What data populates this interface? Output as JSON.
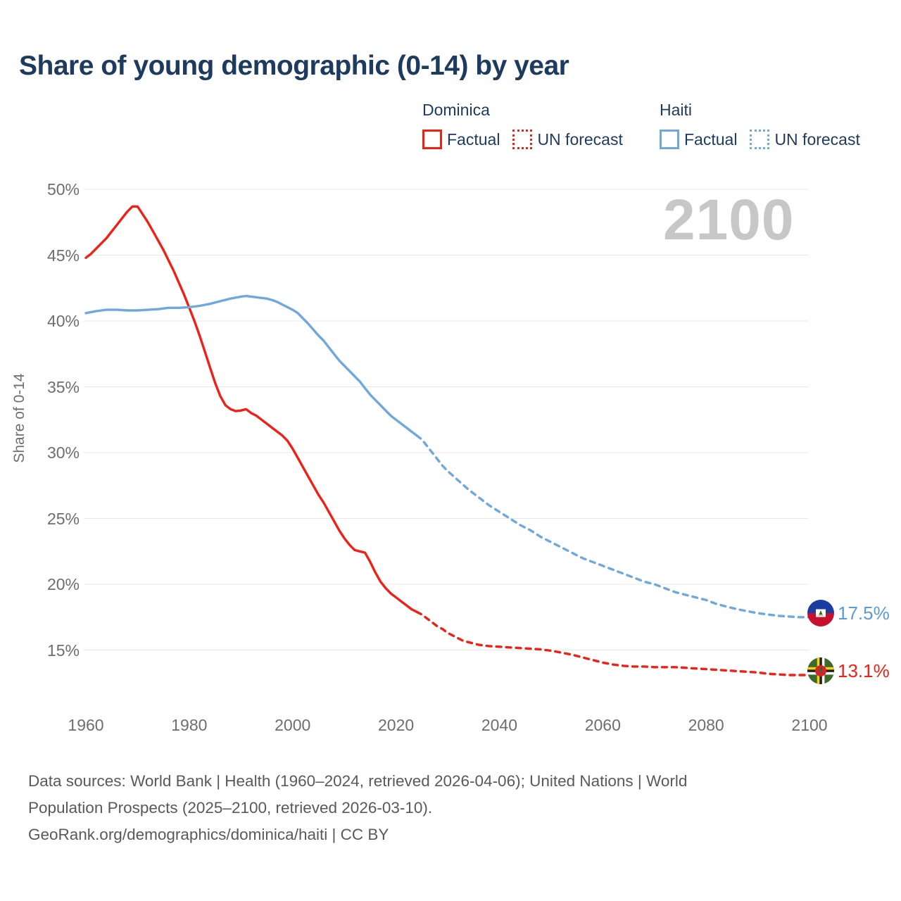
{
  "title": "Share of young demographic (0-14) by year",
  "watermark": "2100",
  "legend": {
    "dominica_label": "Dominica",
    "haiti_label": "Haiti",
    "factual_label": "Factual",
    "forecast_label": "UN forecast"
  },
  "end_labels": {
    "haiti_value": "17.5%",
    "dominica_value": "13.1%"
  },
  "footer": {
    "line1": "Data sources: World Bank | Health (1960–2024, retrieved 2026-04-06); United Nations | World",
    "line2": "Population Prospects (2025–2100, retrieved 2026-03-10).",
    "line3": "GeoRank.org/demographics/dominica/haiti | CC BY"
  },
  "colors": {
    "dominica": "#f02015",
    "haiti": "#6fa8dc",
    "haiti_label_text": "#5b9bd8",
    "title_text": "#1d3a5f",
    "axis_text": "#6e6e6e",
    "gridline": "#e8e8e8",
    "watermark": "#c7c7c7",
    "footer_text": "#595959"
  },
  "chart_data": {
    "type": "line",
    "title": "Share of young demographic (0-14) by year",
    "xlabel": "",
    "ylabel": "Share of 0-14",
    "x_axis": {
      "ticks": [
        1960,
        1980,
        2000,
        2020,
        2040,
        2060,
        2080,
        2100
      ],
      "range": [
        1960,
        2100
      ]
    },
    "y_axis": {
      "ticks_pct": [
        15,
        20,
        25,
        30,
        35,
        40,
        45,
        50
      ],
      "unit": "%",
      "grid": true
    },
    "legend_position": "top-right",
    "series": [
      {
        "name": "Dominica Factual",
        "style": "solid",
        "color": "#f02015",
        "points": [
          [
            1960,
            44.8
          ],
          [
            1961,
            45.1
          ],
          [
            1962,
            45.5
          ],
          [
            1963,
            45.9
          ],
          [
            1964,
            46.3
          ],
          [
            1965,
            46.8
          ],
          [
            1966,
            47.3
          ],
          [
            1967,
            47.8
          ],
          [
            1968,
            48.3
          ],
          [
            1969,
            48.7
          ],
          [
            1970,
            48.7
          ],
          [
            1971,
            48.1
          ],
          [
            1972,
            47.5
          ],
          [
            1973,
            46.8
          ],
          [
            1974,
            46.1
          ],
          [
            1975,
            45.4
          ],
          [
            1976,
            44.6
          ],
          [
            1977,
            43.8
          ],
          [
            1978,
            42.9
          ],
          [
            1979,
            42.0
          ],
          [
            1980,
            41.0
          ],
          [
            1981,
            40.0
          ],
          [
            1982,
            38.9
          ],
          [
            1983,
            37.7
          ],
          [
            1984,
            36.5
          ],
          [
            1985,
            35.3
          ],
          [
            1986,
            34.3
          ],
          [
            1987,
            33.6
          ],
          [
            1988,
            33.3
          ],
          [
            1989,
            33.15
          ],
          [
            1990,
            33.2
          ],
          [
            1991,
            33.3
          ],
          [
            1992,
            33.0
          ],
          [
            1993,
            32.8
          ],
          [
            1994,
            32.5
          ],
          [
            1995,
            32.2
          ],
          [
            1996,
            31.9
          ],
          [
            1997,
            31.6
          ],
          [
            1998,
            31.3
          ],
          [
            1999,
            30.9
          ],
          [
            2000,
            30.3
          ],
          [
            2001,
            29.6
          ],
          [
            2002,
            28.9
          ],
          [
            2003,
            28.2
          ],
          [
            2004,
            27.5
          ],
          [
            2005,
            26.8
          ],
          [
            2006,
            26.2
          ],
          [
            2007,
            25.5
          ],
          [
            2008,
            24.8
          ],
          [
            2009,
            24.1
          ],
          [
            2010,
            23.5
          ],
          [
            2011,
            23.0
          ],
          [
            2012,
            22.6
          ],
          [
            2013,
            22.5
          ],
          [
            2014,
            22.4
          ],
          [
            2015,
            21.7
          ],
          [
            2016,
            20.9
          ],
          [
            2017,
            20.2
          ],
          [
            2018,
            19.7
          ],
          [
            2019,
            19.3
          ],
          [
            2020,
            19.0
          ],
          [
            2021,
            18.7
          ],
          [
            2022,
            18.4
          ],
          [
            2023,
            18.1
          ],
          [
            2024,
            17.9
          ]
        ]
      },
      {
        "name": "Dominica UN forecast",
        "style": "dashed",
        "color": "#f02015",
        "points": [
          [
            2024,
            17.9
          ],
          [
            2025,
            17.7
          ],
          [
            2026,
            17.4
          ],
          [
            2027,
            17.1
          ],
          [
            2028,
            16.8
          ],
          [
            2029,
            16.6
          ],
          [
            2030,
            16.3
          ],
          [
            2031,
            16.1
          ],
          [
            2032,
            15.9
          ],
          [
            2033,
            15.7
          ],
          [
            2034,
            15.6
          ],
          [
            2035,
            15.5
          ],
          [
            2036,
            15.4
          ],
          [
            2038,
            15.3
          ],
          [
            2040,
            15.25
          ],
          [
            2042,
            15.2
          ],
          [
            2044,
            15.15
          ],
          [
            2046,
            15.1
          ],
          [
            2048,
            15.05
          ],
          [
            2050,
            14.95
          ],
          [
            2052,
            14.8
          ],
          [
            2054,
            14.65
          ],
          [
            2056,
            14.45
          ],
          [
            2058,
            14.25
          ],
          [
            2060,
            14.05
          ],
          [
            2062,
            13.9
          ],
          [
            2064,
            13.8
          ],
          [
            2066,
            13.75
          ],
          [
            2068,
            13.75
          ],
          [
            2070,
            13.7
          ],
          [
            2072,
            13.7
          ],
          [
            2074,
            13.7
          ],
          [
            2076,
            13.65
          ],
          [
            2078,
            13.6
          ],
          [
            2080,
            13.55
          ],
          [
            2082,
            13.5
          ],
          [
            2084,
            13.45
          ],
          [
            2086,
            13.4
          ],
          [
            2088,
            13.35
          ],
          [
            2090,
            13.3
          ],
          [
            2092,
            13.2
          ],
          [
            2094,
            13.15
          ],
          [
            2096,
            13.1
          ],
          [
            2098,
            13.1
          ],
          [
            2100,
            13.1
          ]
        ]
      },
      {
        "name": "Haiti Factual",
        "style": "solid",
        "color": "#6fa8dc",
        "points": [
          [
            1960,
            40.6
          ],
          [
            1962,
            40.75
          ],
          [
            1964,
            40.85
          ],
          [
            1966,
            40.85
          ],
          [
            1968,
            40.8
          ],
          [
            1970,
            40.8
          ],
          [
            1972,
            40.85
          ],
          [
            1974,
            40.9
          ],
          [
            1976,
            41.0
          ],
          [
            1978,
            41.0
          ],
          [
            1980,
            41.05
          ],
          [
            1982,
            41.15
          ],
          [
            1984,
            41.3
          ],
          [
            1986,
            41.5
          ],
          [
            1988,
            41.7
          ],
          [
            1990,
            41.85
          ],
          [
            1991,
            41.9
          ],
          [
            1992,
            41.85
          ],
          [
            1994,
            41.75
          ],
          [
            1995,
            41.7
          ],
          [
            1996,
            41.6
          ],
          [
            1997,
            41.45
          ],
          [
            1998,
            41.25
          ],
          [
            1999,
            41.05
          ],
          [
            2000,
            40.85
          ],
          [
            2001,
            40.6
          ],
          [
            2002,
            40.2
          ],
          [
            2003,
            39.8
          ],
          [
            2004,
            39.35
          ],
          [
            2005,
            38.9
          ],
          [
            2006,
            38.5
          ],
          [
            2007,
            38.0
          ],
          [
            2008,
            37.5
          ],
          [
            2009,
            37.0
          ],
          [
            2010,
            36.6
          ],
          [
            2011,
            36.2
          ],
          [
            2012,
            35.8
          ],
          [
            2013,
            35.4
          ],
          [
            2014,
            34.9
          ],
          [
            2015,
            34.4
          ],
          [
            2016,
            34.0
          ],
          [
            2017,
            33.6
          ],
          [
            2018,
            33.2
          ],
          [
            2019,
            32.8
          ],
          [
            2020,
            32.5
          ],
          [
            2021,
            32.2
          ],
          [
            2022,
            31.9
          ],
          [
            2023,
            31.6
          ],
          [
            2024,
            31.3
          ]
        ]
      },
      {
        "name": "Haiti UN forecast",
        "style": "dashed",
        "color": "#6fa8dc",
        "points": [
          [
            2024,
            31.3
          ],
          [
            2025,
            31.0
          ],
          [
            2026,
            30.5
          ],
          [
            2027,
            30.0
          ],
          [
            2028,
            29.5
          ],
          [
            2029,
            29.0
          ],
          [
            2030,
            28.6
          ],
          [
            2032,
            27.9
          ],
          [
            2034,
            27.2
          ],
          [
            2036,
            26.6
          ],
          [
            2038,
            26.0
          ],
          [
            2040,
            25.5
          ],
          [
            2042,
            25.0
          ],
          [
            2044,
            24.5
          ],
          [
            2046,
            24.1
          ],
          [
            2048,
            23.6
          ],
          [
            2050,
            23.2
          ],
          [
            2052,
            22.8
          ],
          [
            2054,
            22.4
          ],
          [
            2056,
            22.0
          ],
          [
            2058,
            21.7
          ],
          [
            2060,
            21.4
          ],
          [
            2062,
            21.1
          ],
          [
            2064,
            20.8
          ],
          [
            2066,
            20.5
          ],
          [
            2068,
            20.2
          ],
          [
            2070,
            20.0
          ],
          [
            2072,
            19.7
          ],
          [
            2074,
            19.4
          ],
          [
            2076,
            19.2
          ],
          [
            2078,
            19.0
          ],
          [
            2080,
            18.8
          ],
          [
            2082,
            18.5
          ],
          [
            2084,
            18.3
          ],
          [
            2086,
            18.1
          ],
          [
            2088,
            17.95
          ],
          [
            2090,
            17.8
          ],
          [
            2092,
            17.7
          ],
          [
            2094,
            17.6
          ],
          [
            2096,
            17.55
          ],
          [
            2098,
            17.5
          ],
          [
            2100,
            17.5
          ]
        ]
      }
    ],
    "end_annotations": [
      {
        "series": "Haiti UN forecast",
        "year": 2100,
        "value_pct": 17.5,
        "label": "17.5%",
        "marker": "haiti-flag"
      },
      {
        "series": "Dominica UN forecast",
        "year": 2100,
        "value_pct": 13.1,
        "label": "13.1%",
        "marker": "dominica-flag"
      }
    ]
  }
}
